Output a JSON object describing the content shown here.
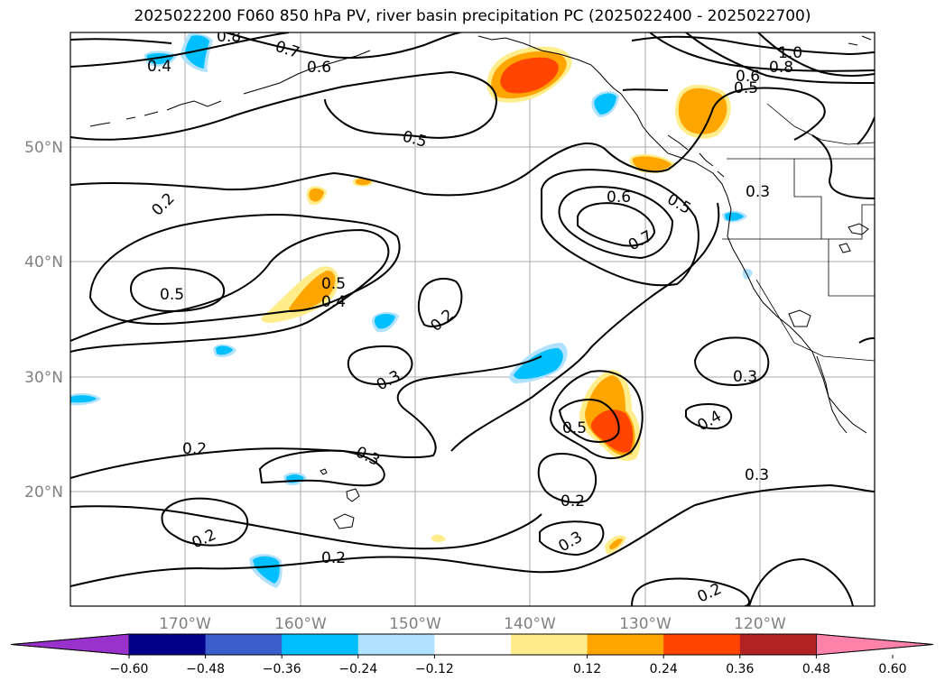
{
  "title": "2025022200 F060 850 hPa PV, river basin precipitation PC (2025022400 - 2025022700)",
  "map": {
    "lon_range": [
      -180,
      -110
    ],
    "lat_range": [
      10,
      60
    ],
    "lon_ticks": [
      "170°W",
      "160°W",
      "150°W",
      "140°W",
      "130°W",
      "120°W"
    ],
    "lat_ticks": [
      "20°N",
      "30°N",
      "40°N",
      "50°N"
    ],
    "grid": true,
    "contour_labels": [
      "0.8",
      "0.7",
      "0.6",
      "0.4",
      "1.0",
      "0.8",
      "0.6",
      "0.5",
      "0.5",
      "0.2",
      "0.6",
      "0.5",
      "0.3",
      "0.7",
      "0.5",
      "0.5",
      "0.4",
      "0.2",
      "0.3",
      "0.3",
      "0.5",
      "0.4",
      "0.2",
      "0.3",
      "0.3",
      "0.2",
      "0.2",
      "0.3",
      "0.2",
      "0.2"
    ]
  },
  "colorbar": {
    "ticks": [
      "−0.60",
      "−0.48",
      "−0.36",
      "−0.24",
      "−0.12",
      "0.12",
      "0.24",
      "0.36",
      "0.48",
      "0.60"
    ],
    "colors": [
      "#9932cc",
      "#00008b",
      "#3a5fcd",
      "#00bfff",
      "#b0e2ff",
      "#ffffff",
      "#ffec8b",
      "#ffa500",
      "#ff4500",
      "#b22222",
      "#ff82ab"
    ]
  }
}
